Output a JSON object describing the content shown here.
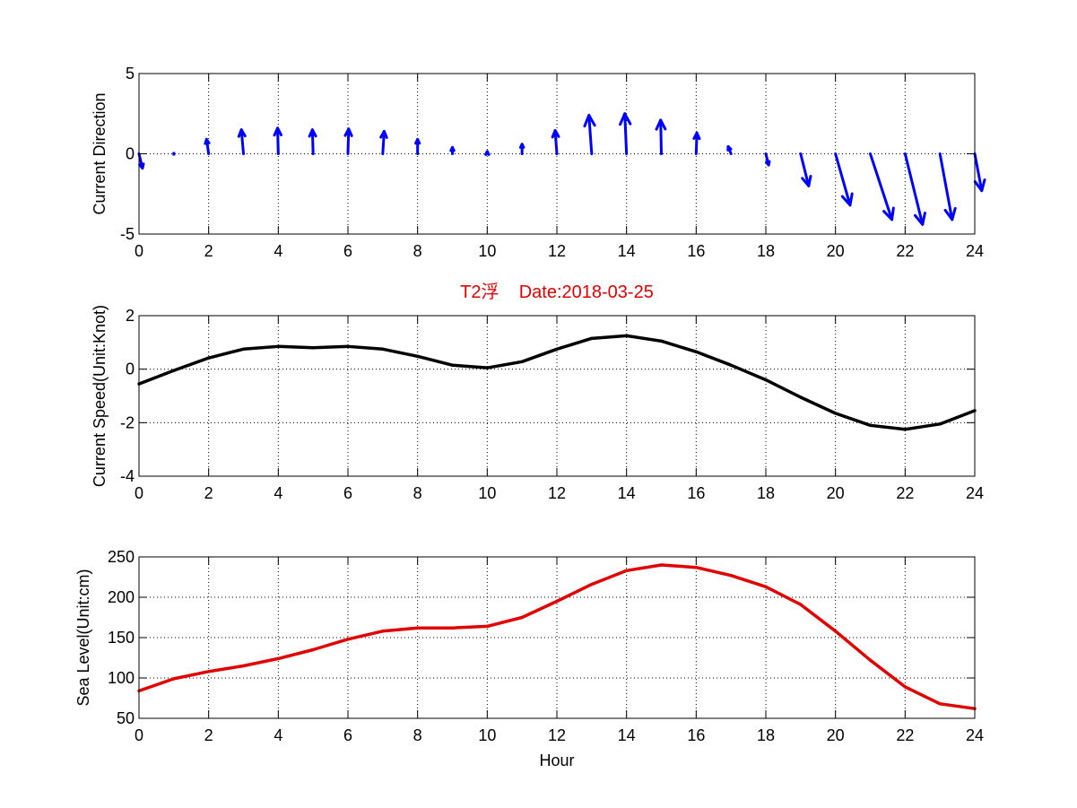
{
  "figure": {
    "title": "T2浮    Date:2018-03-25"
  },
  "colors": {
    "direction": "#0000ff",
    "speed": "#000000",
    "sea_level": "#e00000",
    "title": "#e00000"
  },
  "chart_data": [
    {
      "type": "quiver",
      "ylabel": "Current Direction",
      "xlabel": "",
      "xlim": [
        0,
        24
      ],
      "ylim": [
        -5,
        5
      ],
      "xticks": [
        0,
        2,
        4,
        6,
        8,
        10,
        12,
        14,
        16,
        18,
        20,
        22,
        24
      ],
      "yticks": [
        -5,
        0,
        5
      ],
      "grid": true,
      "x": [
        0,
        1,
        2,
        3,
        4,
        5,
        6,
        7,
        8,
        9,
        10,
        11,
        12,
        13,
        14,
        15,
        16,
        17,
        18,
        19,
        20,
        21,
        22,
        23,
        24
      ],
      "u": [
        0.1,
        0.0,
        -0.06,
        -0.06,
        -0.02,
        -0.02,
        0.02,
        0.04,
        0.0,
        0.0,
        0.0,
        0.0,
        -0.05,
        -0.08,
        -0.05,
        -0.02,
        0.02,
        -0.08,
        0.08,
        0.23,
        0.42,
        0.62,
        0.5,
        0.35,
        0.2
      ],
      "v": [
        -0.9,
        0.0,
        0.9,
        1.5,
        1.6,
        1.5,
        1.55,
        1.4,
        0.9,
        0.4,
        0.15,
        0.6,
        1.45,
        2.4,
        2.5,
        2.1,
        1.3,
        0.45,
        -0.7,
        -2.0,
        -3.2,
        -4.1,
        -4.4,
        -4.1,
        -2.3
      ]
    },
    {
      "type": "line",
      "ylabel": "Current Speed(Unit:Knot)",
      "xlabel": "",
      "xlim": [
        0,
        24
      ],
      "ylim": [
        -4,
        2
      ],
      "xticks": [
        0,
        2,
        4,
        6,
        8,
        10,
        12,
        14,
        16,
        18,
        20,
        22,
        24
      ],
      "yticks": [
        -4,
        -2,
        0,
        2
      ],
      "grid": true,
      "series": [
        {
          "x": [
            0,
            1,
            2,
            3,
            4,
            5,
            6,
            7,
            8,
            9,
            10,
            11,
            12,
            13,
            14,
            15,
            16,
            17,
            18,
            19,
            20,
            21,
            22,
            23,
            24
          ],
          "values": [
            -0.55,
            -0.05,
            0.42,
            0.75,
            0.85,
            0.8,
            0.85,
            0.75,
            0.48,
            0.15,
            0.05,
            0.28,
            0.75,
            1.15,
            1.25,
            1.05,
            0.65,
            0.15,
            -0.4,
            -1.05,
            -1.65,
            -2.1,
            -2.25,
            -2.05,
            -1.55
          ]
        }
      ]
    },
    {
      "type": "line",
      "ylabel": "Sea Level(Unit:cm)",
      "xlabel": "Hour",
      "xlim": [
        0,
        24
      ],
      "ylim": [
        50,
        250
      ],
      "xticks": [
        0,
        2,
        4,
        6,
        8,
        10,
        12,
        14,
        16,
        18,
        20,
        22,
        24
      ],
      "yticks": [
        50,
        100,
        150,
        200,
        250
      ],
      "grid": true,
      "series": [
        {
          "x": [
            0,
            1,
            2,
            3,
            4,
            5,
            6,
            7,
            8,
            9,
            10,
            11,
            12,
            13,
            14,
            15,
            16,
            17,
            18,
            19,
            20,
            21,
            22,
            23,
            24
          ],
          "values": [
            84,
            99,
            108,
            115,
            124,
            135,
            148,
            158,
            162,
            162,
            164,
            175,
            195,
            216,
            233,
            240,
            237,
            227,
            213,
            191,
            158,
            122,
            89,
            68,
            62
          ]
        }
      ]
    }
  ]
}
